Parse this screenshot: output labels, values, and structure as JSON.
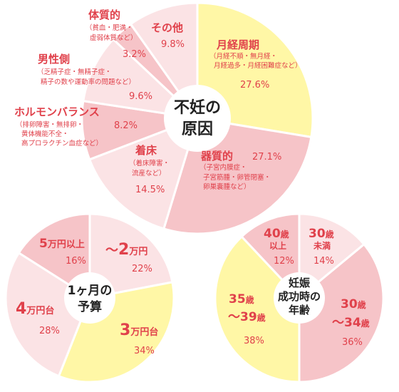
{
  "colors": {
    "yellow": "#fff7a6",
    "pink": "#f6c4c8",
    "light_pink": "#fbe3e5",
    "text": "#e0414b"
  },
  "chart_data": [
    {
      "type": "pie",
      "title": "不妊の原因",
      "slices": [
        {
          "name": "月経周期",
          "sub": [
            "（月経不順・無月経・",
            "月経過多・月経困難症など）"
          ],
          "value": 27.6,
          "pct_label": "27.6%",
          "fill": "#fff7a6"
        },
        {
          "name": "器質的",
          "sub": [
            "（子宮内膜症・",
            "子宮筋腫・卵管閉塞・",
            "卵巣嚢腫など）"
          ],
          "value": 27.1,
          "pct_label": "27.1%",
          "fill": "#f6c4c8"
        },
        {
          "name": "着床",
          "sub": [
            "（着床障害・",
            "流産など）"
          ],
          "value": 14.5,
          "pct_label": "14.5%",
          "fill": "#fbe3e5"
        },
        {
          "name": "ホルモンバランス",
          "sub": [
            "（排卵障害・無排卵・",
            "黄体機能不全・",
            "高プロラクチン血症など）"
          ],
          "value": 8.2,
          "pct_label": "8.2%",
          "fill": "#f6c4c8"
        },
        {
          "name": "男性側",
          "sub": [
            "（乏精子症・無精子症・",
            "精子の数や運動率の問題など）"
          ],
          "value": 9.6,
          "pct_label": "9.6%",
          "fill": "#fbe3e5"
        },
        {
          "name": "体質的",
          "sub": [
            "（貧血・肥満・",
            "虚弱体質など）"
          ],
          "value": 3.2,
          "pct_label": "3.2%",
          "fill": "#f6c4c8"
        },
        {
          "name": "その他",
          "sub": [],
          "value": 9.8,
          "pct_label": "9.8%",
          "fill": "#fbe3e5"
        }
      ]
    },
    {
      "type": "pie",
      "title": "1ヶ月の予算",
      "slices": [
        {
          "name": "～2万円",
          "value": 22,
          "pct_label": "22%",
          "fill": "#fbe3e5"
        },
        {
          "name": "3万円台",
          "value": 34,
          "pct_label": "34%",
          "fill": "#fff7a6"
        },
        {
          "name": "4万円台",
          "value": 28,
          "pct_label": "28%",
          "fill": "#fbe3e5"
        },
        {
          "name": "5万円以上",
          "value": 16,
          "pct_label": "16%",
          "fill": "#f6c4c8"
        }
      ]
    },
    {
      "type": "pie",
      "title": "妊娠成功時の年齢",
      "slices": [
        {
          "name": "30歳未満",
          "value": 14,
          "pct_label": "14%",
          "fill": "#fbe3e5"
        },
        {
          "name": "30歳～34歳",
          "value": 36,
          "pct_label": "36%",
          "fill": "#f6c4c8"
        },
        {
          "name": "35歳～39歳",
          "value": 38,
          "pct_label": "38%",
          "fill": "#fff7a6"
        },
        {
          "name": "40歳以上",
          "value": 12,
          "pct_label": "12%",
          "fill": "#f6c4c8"
        }
      ]
    }
  ],
  "labels": {
    "c1": {
      "center": [
        "不妊の",
        "原因"
      ],
      "s0": {
        "name": "月経周期",
        "sub1": "（月経不順・無月経・",
        "sub2": "月経過多・月経困難症など）",
        "pct": "27.6%"
      },
      "s1": {
        "name": "器質的",
        "sub1": "（子宮内膜症・",
        "sub2": "子宮筋腫・卵管閉塞・",
        "sub3": "卵巣嚢腫など）",
        "pct": "27.1%"
      },
      "s2": {
        "name": "着床",
        "sub1": "（着床障害・",
        "sub2": "流産など）",
        "pct": "14.5%"
      },
      "s3": {
        "name": "ホルモンバランス",
        "sub1": "（排卵障害・無排卵・",
        "sub2": "黄体機能不全・",
        "sub3": "高プロラクチン血症など）",
        "pct": "8.2%"
      },
      "s4": {
        "name": "男性側",
        "sub1": "（乏精子症・無精子症・",
        "sub2": "精子の数や運動率の問題など）",
        "pct": "9.6%"
      },
      "s5": {
        "name": "体質的",
        "sub1": "（貧血・肥満・",
        "sub2": "虚弱体質など）",
        "pct": "3.2%"
      },
      "s6": {
        "name": "その他",
        "pct": "9.8%"
      }
    },
    "c2": {
      "center": [
        "1ヶ月の",
        "予算"
      ],
      "s0": {
        "tilde": "～",
        "num": "2",
        "unit": "万円",
        "pct": "22%"
      },
      "s1": {
        "num": "3",
        "unit": "万円台",
        "pct": "34%"
      },
      "s2": {
        "num": "4",
        "unit": "万円台",
        "pct": "28%"
      },
      "s3": {
        "num": "5",
        "unit": "万円以上",
        "pct": "16%"
      }
    },
    "c3": {
      "center": [
        "妊娠",
        "成功時の",
        "年齢"
      ],
      "s0": {
        "num": "30",
        "unit": "歳",
        "line2": "未満",
        "pct": "14%"
      },
      "s1": {
        "num": "30",
        "unit": "歳",
        "tilde": "～",
        "num2": "34",
        "unit2": "歳",
        "pct": "36%"
      },
      "s2": {
        "num": "35",
        "unit": "歳",
        "tilde": "～",
        "num2": "39",
        "unit2": "歳",
        "pct": "38%"
      },
      "s3": {
        "num": "40",
        "unit": "歳",
        "line2": "以上",
        "pct": "12%"
      }
    }
  }
}
